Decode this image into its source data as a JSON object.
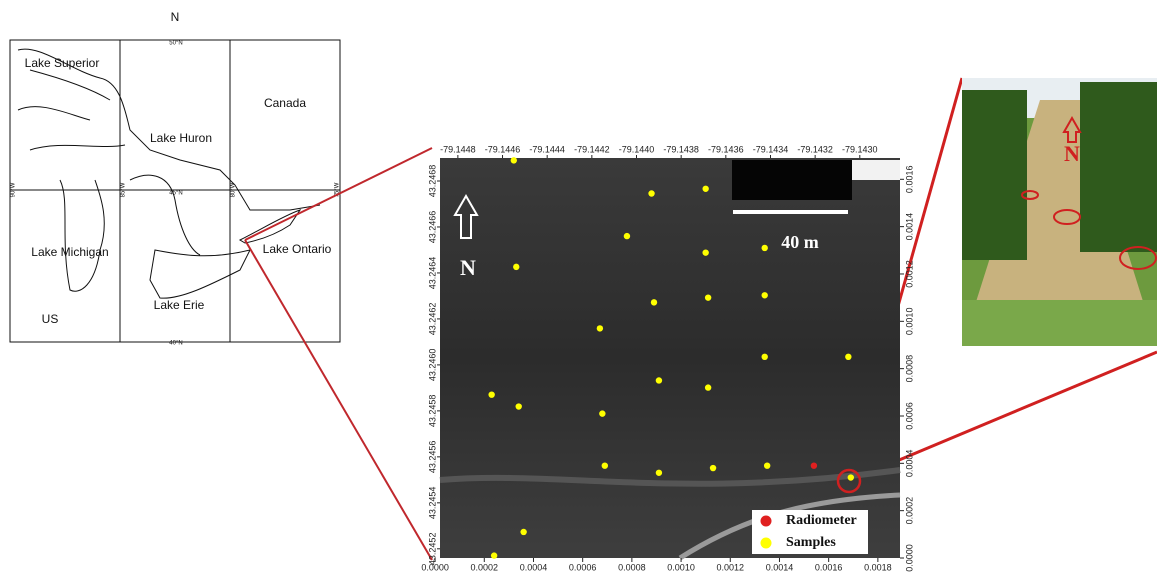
{
  "map": {
    "north": "N",
    "places": [
      "Lake Superior",
      "Lake Huron",
      "Canada",
      "Lake Michigan",
      "Lake Ontario",
      "Lake Erie",
      "US"
    ],
    "grid_labels": [
      "50°N",
      "45°N",
      "40°N",
      "90°W",
      "85°W",
      "80°W",
      "75°W"
    ]
  },
  "chart_data": {
    "type": "scatter",
    "series": [
      {
        "name": "Radiometer",
        "color": "#e02020",
        "x": [
          0.00154
        ],
        "y": [
          0.00039
        ]
      },
      {
        "name": "Samples",
        "color": "#ffff00",
        "x": [
          0.00032,
          0.00088,
          0.0011,
          0.00078,
          0.0011,
          0.00134,
          0.00033,
          0.00089,
          0.00111,
          0.00134,
          0.00067,
          0.00134,
          0.00168,
          0.00091,
          0.00111,
          0.00023,
          0.00034,
          0.00068,
          0.00069,
          0.00091,
          0.00113,
          0.00135,
          0.00169,
          0.00036,
          0.00024
        ],
        "y": [
          0.00168,
          0.00154,
          0.00156,
          0.00136,
          0.00129,
          0.00131,
          0.00123,
          0.00108,
          0.0011,
          0.00111,
          0.00097,
          0.00085,
          0.00085,
          0.00075,
          0.00072,
          0.00069,
          0.00064,
          0.00061,
          0.00039,
          0.00036,
          0.00038,
          0.00039,
          0.00034,
          0.00011,
          1e-05
        ]
      }
    ],
    "xlim": [
      2e-05,
      0.00189
    ],
    "ylim": [
      0,
      0.00169
    ],
    "xticks": [
      {
        "value": 0,
        "label": "0.0000"
      },
      0.0002,
      0.0004,
      0.0006,
      0.0008,
      {
        "value": 0.001,
        "label": "0.0010"
      },
      0.0012,
      0.0014,
      0.0016,
      0.0018
    ],
    "yticks": [
      {
        "value": 0,
        "label": "0.0000"
      },
      0.0002,
      0.0004,
      0.0006,
      0.0008,
      {
        "value": 0.001,
        "label": "0.0010"
      },
      0.0012,
      0.0014,
      0.0016
    ],
    "x2lim": [
      -79.14488,
      -79.14282
    ],
    "y2lim": [
      43.24516,
      43.2469
    ],
    "x2ticks": [
      -79.1448,
      -79.1446,
      -79.1444,
      -79.1442,
      {
        "value": -79.144,
        "label": "-79.1440"
      },
      -79.1438,
      -79.1436,
      -79.1434,
      -79.1432,
      {
        "value": -79.143,
        "label": "-79.1430"
      }
    ],
    "y2ticks": [
      43.2452,
      43.2454,
      43.2456,
      43.2458,
      {
        "value": 43.246,
        "label": "43.2460"
      },
      43.2462,
      43.2464,
      43.2466,
      43.2468
    ],
    "north": "N",
    "scale_bar": "40 m"
  },
  "photo": {
    "north": "N"
  }
}
